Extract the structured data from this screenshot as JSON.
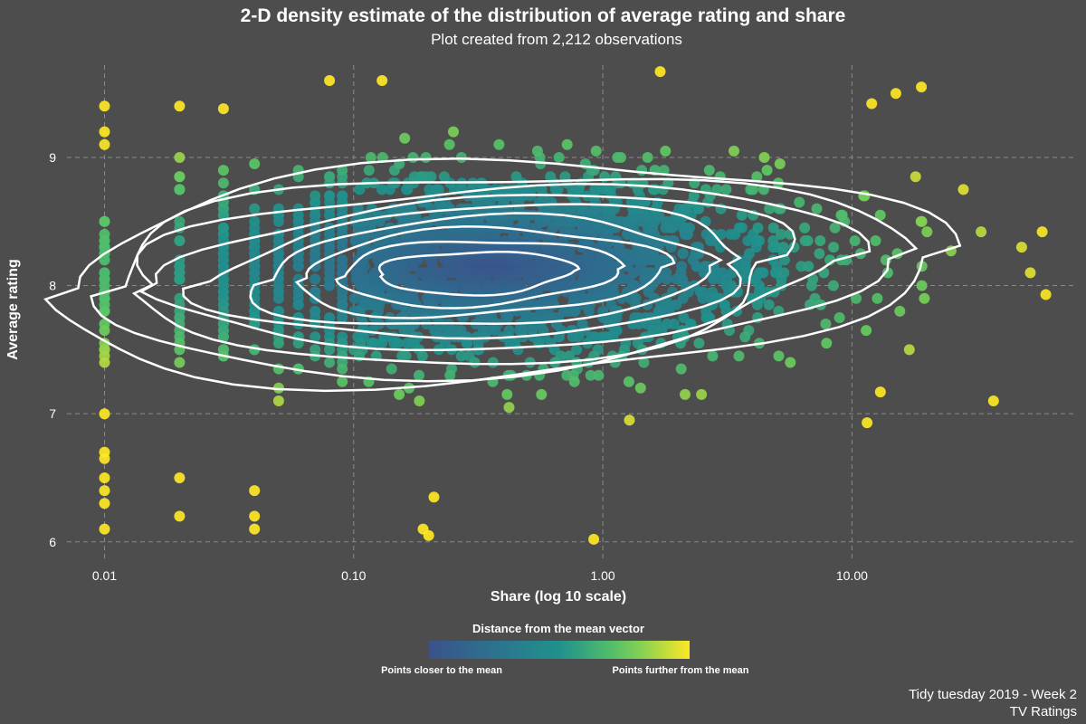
{
  "title": "2-D density estimate of the distribution of average rating and share",
  "subtitle": "Plot created from 2,212 observations",
  "caption": {
    "line1": "Tidy tuesday 2019 - Week 2",
    "line2": "TV Ratings"
  },
  "colors": {
    "background": "#4d4d4d",
    "grid": "#8a8a8a",
    "contour": "#ffffff",
    "viridis_low": "#2c4a86",
    "viridis_mid": "#21908c",
    "viridis_high": "#fde725"
  },
  "chart_data": {
    "type": "scatter",
    "title": "2-D density estimate of the distribution of average rating and share",
    "subtitle": "Plot created from 2,212 observations",
    "xlabel": "Share (log 10 scale)",
    "ylabel": "Average rating",
    "x_scale": "log10",
    "xlim": [
      0.0065,
      80
    ],
    "ylim": [
      5.85,
      9.72
    ],
    "x_ticks": [
      0.01,
      0.1,
      1,
      10
    ],
    "x_tick_labels": [
      "0.01",
      "0.10",
      "1.00",
      "10.00"
    ],
    "y_ticks": [
      6,
      7,
      8,
      9
    ],
    "y_tick_labels": [
      "6",
      "7",
      "8",
      "9"
    ],
    "grid": true,
    "n_observations": 2212,
    "center": {
      "x": 0.35,
      "y": 8.15
    },
    "legend": {
      "title": "Distance from the mean vector",
      "position": "bottom",
      "low_label": "Points closer to the mean",
      "high_label": "Points further from the mean",
      "palette": "viridis"
    },
    "contour_levels": 9,
    "outlier_points": [
      {
        "x": 0.01,
        "y": 6.1
      },
      {
        "x": 0.01,
        "y": 6.3
      },
      {
        "x": 0.01,
        "y": 6.4
      },
      {
        "x": 0.01,
        "y": 6.5
      },
      {
        "x": 0.01,
        "y": 6.65
      },
      {
        "x": 0.01,
        "y": 6.7
      },
      {
        "x": 0.01,
        "y": 9.4
      },
      {
        "x": 0.01,
        "y": 9.2
      },
      {
        "x": 0.01,
        "y": 9.1
      },
      {
        "x": 0.02,
        "y": 6.2
      },
      {
        "x": 0.02,
        "y": 6.5
      },
      {
        "x": 0.02,
        "y": 9.4
      },
      {
        "x": 0.03,
        "y": 9.38
      },
      {
        "x": 0.04,
        "y": 6.1
      },
      {
        "x": 0.04,
        "y": 6.2
      },
      {
        "x": 0.04,
        "y": 6.4
      },
      {
        "x": 0.08,
        "y": 9.6
      },
      {
        "x": 0.13,
        "y": 9.6
      },
      {
        "x": 0.19,
        "y": 6.1
      },
      {
        "x": 0.2,
        "y": 6.05
      },
      {
        "x": 0.21,
        "y": 6.35
      },
      {
        "x": 0.92,
        "y": 6.02
      },
      {
        "x": 1.7,
        "y": 9.67
      },
      {
        "x": 15,
        "y": 9.5
      },
      {
        "x": 19,
        "y": 9.55
      },
      {
        "x": 37,
        "y": 7.1
      },
      {
        "x": 48,
        "y": 8.3
      },
      {
        "x": 58,
        "y": 8.42
      },
      {
        "x": 60,
        "y": 7.93
      },
      {
        "x": 52,
        "y": 8.1
      },
      {
        "x": 28,
        "y": 8.75
      },
      {
        "x": 33,
        "y": 8.42
      },
      {
        "x": 25,
        "y": 8.27
      },
      {
        "x": 12,
        "y": 9.42
      },
      {
        "x": 11.5,
        "y": 6.93
      },
      {
        "x": 13,
        "y": 7.17
      },
      {
        "x": 17,
        "y": 7.5
      },
      {
        "x": 18,
        "y": 8.85
      },
      {
        "x": 20,
        "y": 8.42
      }
    ]
  }
}
